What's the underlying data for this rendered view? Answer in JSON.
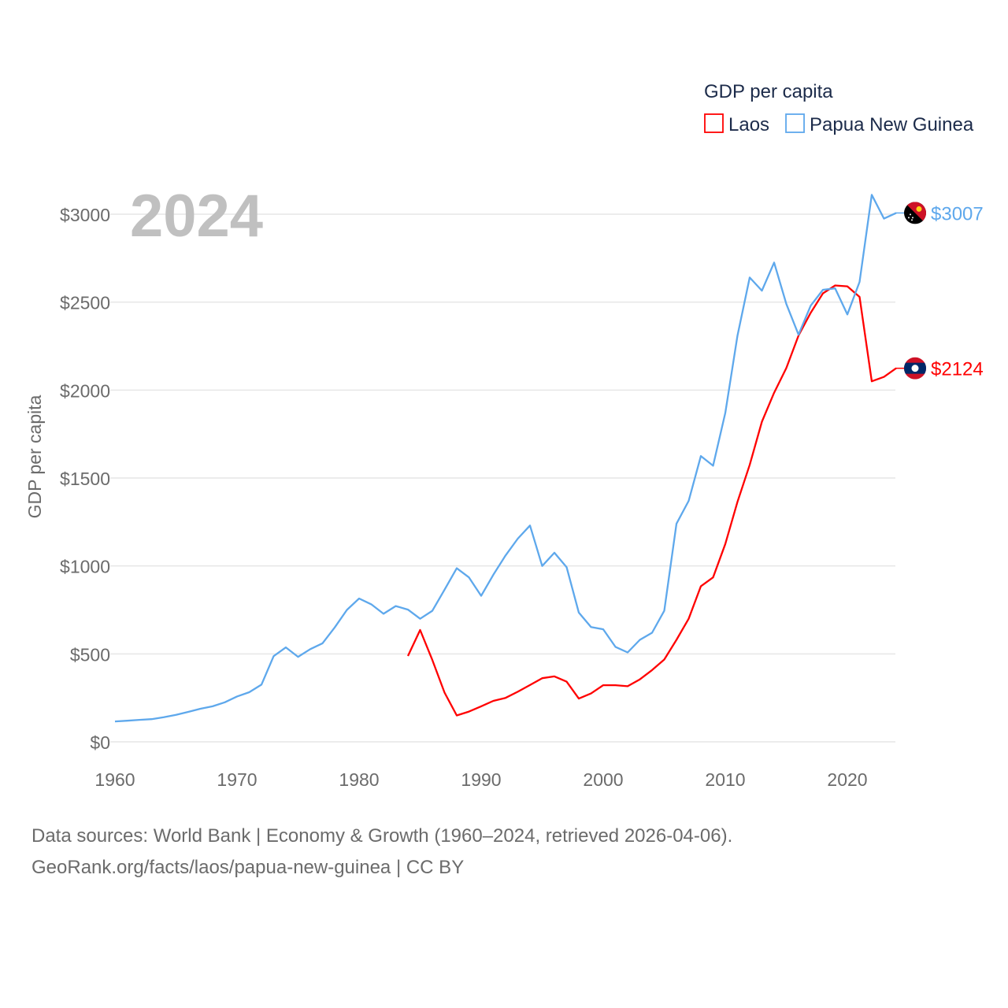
{
  "chart_data": {
    "type": "line",
    "title": "GDP per capita",
    "year_label": "2024",
    "xlabel": "",
    "ylabel": "GDP per capita",
    "xlim": [
      1960,
      2024
    ],
    "ylim": [
      0,
      3300
    ],
    "x_ticks": [
      1960,
      1970,
      1980,
      1990,
      2000,
      2010,
      2020
    ],
    "y_ticks": [
      0,
      500,
      1000,
      1500,
      2000,
      2500,
      3000
    ],
    "y_tick_labels": [
      "$0",
      "$500",
      "$1000",
      "$1500",
      "$2000",
      "$2500",
      "$3000"
    ],
    "grid": true,
    "legend_position": "top-right",
    "series": [
      {
        "name": "Laos",
        "color": "#ff0000",
        "end_label": "$2124",
        "flag": "laos-flag",
        "start_year": 1984,
        "values": [
          488,
          636,
          465,
          280,
          150,
          172,
          202,
          233,
          250,
          285,
          323,
          362,
          372,
          342,
          246,
          275,
          322,
          322,
          316,
          355,
          408,
          468,
          580,
          700,
          885,
          935,
          1125,
          1365,
          1575,
          1820,
          1985,
          2125,
          2310,
          2440,
          2550,
          2595,
          2590,
          2530,
          2050,
          2075,
          2124
        ]
      },
      {
        "name": "Papua New Guinea",
        "color": "#5ea8ec",
        "end_label": "$3007",
        "flag": "papua-new-guinea-flag",
        "start_year": 1960,
        "values": [
          116,
          120,
          125,
          129,
          140,
          153,
          170,
          188,
          202,
          225,
          258,
          282,
          325,
          487,
          537,
          483,
          527,
          560,
          650,
          750,
          815,
          782,
          728,
          772,
          752,
          700,
          745,
          865,
          987,
          935,
          830,
          950,
          1060,
          1155,
          1230,
          1000,
          1075,
          993,
          735,
          653,
          640,
          540,
          508,
          580,
          620,
          745,
          1240,
          1370,
          1625,
          1570,
          1870,
          2310,
          2640,
          2565,
          2725,
          2490,
          2315,
          2480,
          2570,
          2578,
          2430,
          2615,
          3110,
          2975,
          3007
        ]
      }
    ]
  },
  "footer": {
    "line1": "Data sources: World Bank | Economy & Growth (1960–2024, retrieved 2026-04-06).",
    "line2": "GeoRank.org/facts/laos/papua-new-guinea | CC BY"
  }
}
